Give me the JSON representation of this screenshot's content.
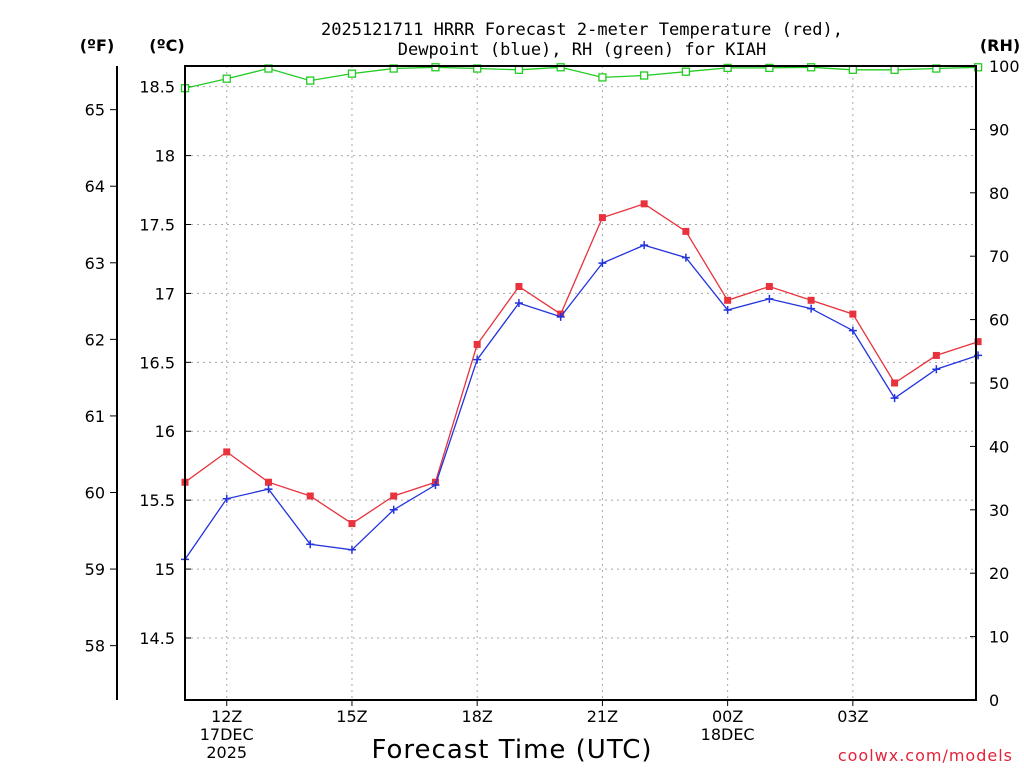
{
  "chart_data": {
    "type": "line",
    "title_lines": [
      "2025121711 HRRR Forecast 2-meter Temperature (red),",
      "Dewpoint (blue), RH (green) for KIAH"
    ],
    "units": {
      "fahrenheit": "(ºF)",
      "celsius": "(ºC)",
      "rh": "(RH)"
    },
    "xlabel": "Forecast Time (UTC)",
    "credit": "coolwx.com/models",
    "x_hours": [
      11,
      12,
      13,
      14,
      15,
      16,
      17,
      18,
      19,
      20,
      21,
      22,
      23,
      24,
      25,
      26,
      27,
      28,
      29,
      30
    ],
    "x_ticks": [
      {
        "hour": 12,
        "lines": [
          "12Z",
          "17DEC",
          "2025"
        ]
      },
      {
        "hour": 15,
        "lines": [
          "15Z"
        ]
      },
      {
        "hour": 18,
        "lines": [
          "18Z"
        ]
      },
      {
        "hour": 21,
        "lines": [
          "21Z"
        ]
      },
      {
        "hour": 24,
        "lines": [
          "00Z",
          "18DEC"
        ]
      },
      {
        "hour": 27,
        "lines": [
          "03Z"
        ]
      }
    ],
    "xlim": [
      11,
      29.95
    ],
    "ylim_c": [
      14.05,
      18.65
    ],
    "ylim_rh": [
      0,
      100
    ],
    "celsius_ticks": [
      "14.5",
      "15",
      "15.5",
      "16",
      "16.5",
      "17",
      "17.5",
      "18",
      "18.5"
    ],
    "fahrenheit_ticks": [
      "58",
      "59",
      "60",
      "61",
      "62",
      "63",
      "64",
      "65"
    ],
    "rh_ticks": [
      "0",
      "10",
      "20",
      "30",
      "40",
      "50",
      "60",
      "70",
      "80",
      "90",
      "100"
    ],
    "series": [
      {
        "name": "Temperature",
        "color": "#e8323c",
        "marker": "square",
        "values_c": [
          15.63,
          15.85,
          15.63,
          15.53,
          15.33,
          15.53,
          15.63,
          16.63,
          17.05,
          16.85,
          17.55,
          17.65,
          17.45,
          16.95,
          17.05,
          16.95,
          16.85,
          16.35,
          16.55,
          16.65
        ]
      },
      {
        "name": "Dewpoint",
        "color": "#2233dd",
        "marker": "plus",
        "values_c": [
          15.07,
          15.51,
          15.58,
          15.18,
          15.14,
          15.43,
          15.61,
          16.52,
          16.93,
          16.83,
          17.22,
          17.35,
          17.26,
          16.88,
          16.96,
          16.89,
          16.73,
          16.24,
          16.45,
          16.55
        ]
      },
      {
        "name": "RH",
        "color": "#22cc22",
        "marker": "open-square",
        "values_rh": [
          96.5,
          98,
          99.6,
          97.7,
          98.8,
          99.6,
          99.8,
          99.6,
          99.4,
          99.8,
          98.2,
          98.5,
          99.1,
          99.7,
          99.7,
          99.8,
          99.4,
          99.4,
          99.6,
          99.8
        ]
      }
    ]
  }
}
